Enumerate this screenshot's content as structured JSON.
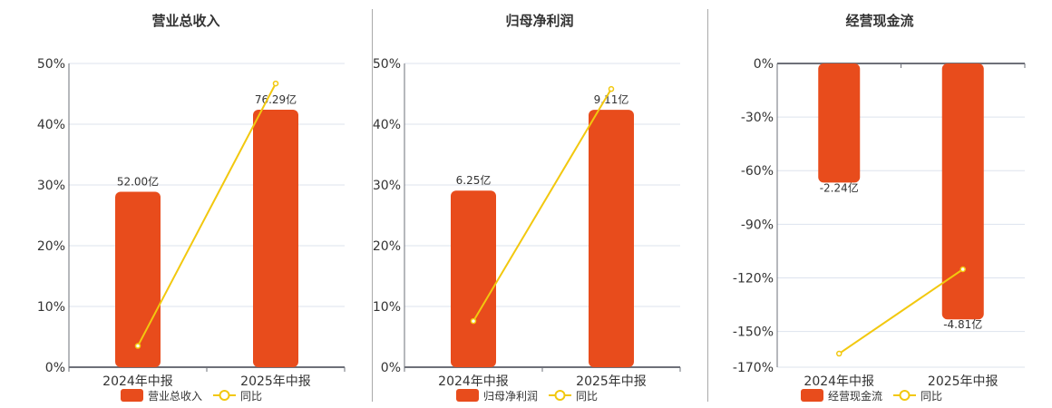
{
  "colors": {
    "bar": "#E84C1C",
    "line": "#F2C80F",
    "grid": "#dde3ee",
    "axis": "#6e7079",
    "text": "#333333"
  },
  "chart_data": [
    {
      "type": "bar",
      "title": "营业总收入",
      "categories": [
        "2024年中报",
        "2025年中报"
      ],
      "bar_series": {
        "name": "营业总收入",
        "values": [
          52.0,
          76.29
        ],
        "labels": [
          "52.00亿",
          "76.29亿"
        ],
        "unit": "亿",
        "axis_range": [
          0,
          90
        ]
      },
      "line_series": {
        "name": "同比",
        "values": [
          3.5,
          46.7
        ],
        "unit": "%"
      },
      "y_ticks": [
        "0%",
        "10%",
        "20%",
        "30%",
        "40%",
        "50%"
      ],
      "y_tick_values": [
        0,
        10,
        20,
        30,
        40,
        50
      ],
      "ylim": [
        0,
        50
      ],
      "grid": true,
      "legend": "bottom"
    },
    {
      "type": "bar",
      "title": "归母净利润",
      "categories": [
        "2024年中报",
        "2025年中报"
      ],
      "bar_series": {
        "name": "归母净利润",
        "values": [
          6.25,
          9.11
        ],
        "labels": [
          "6.25亿",
          "9.11亿"
        ],
        "unit": "亿",
        "axis_range": [
          0,
          10.75
        ]
      },
      "line_series": {
        "name": "同比",
        "values": [
          7.6,
          45.8
        ],
        "unit": "%"
      },
      "y_ticks": [
        "0%",
        "10%",
        "20%",
        "30%",
        "40%",
        "50%"
      ],
      "y_tick_values": [
        0,
        10,
        20,
        30,
        40,
        50
      ],
      "ylim": [
        0,
        50
      ],
      "grid": true,
      "legend": "bottom"
    },
    {
      "type": "bar",
      "title": "经营现金流",
      "categories": [
        "2024年中报",
        "2025年中报"
      ],
      "bar_series": {
        "name": "经营现金流",
        "values": [
          -2.24,
          -4.81
        ],
        "labels": [
          "-2.24亿",
          "-4.81亿"
        ],
        "unit": "亿",
        "axis_range": [
          -5.71,
          0
        ]
      },
      "line_series": {
        "name": "同比",
        "values": [
          -162.4,
          -115.2
        ],
        "unit": "%"
      },
      "y_ticks": [
        "-170%",
        "-150%",
        "-120%",
        "-90%",
        "-60%",
        "-30%",
        "0%"
      ],
      "y_tick_values": [
        -170,
        -150,
        -120,
        -90,
        -60,
        -30,
        0
      ],
      "ylim": [
        -170,
        0
      ],
      "grid": true,
      "legend": "bottom"
    }
  ]
}
